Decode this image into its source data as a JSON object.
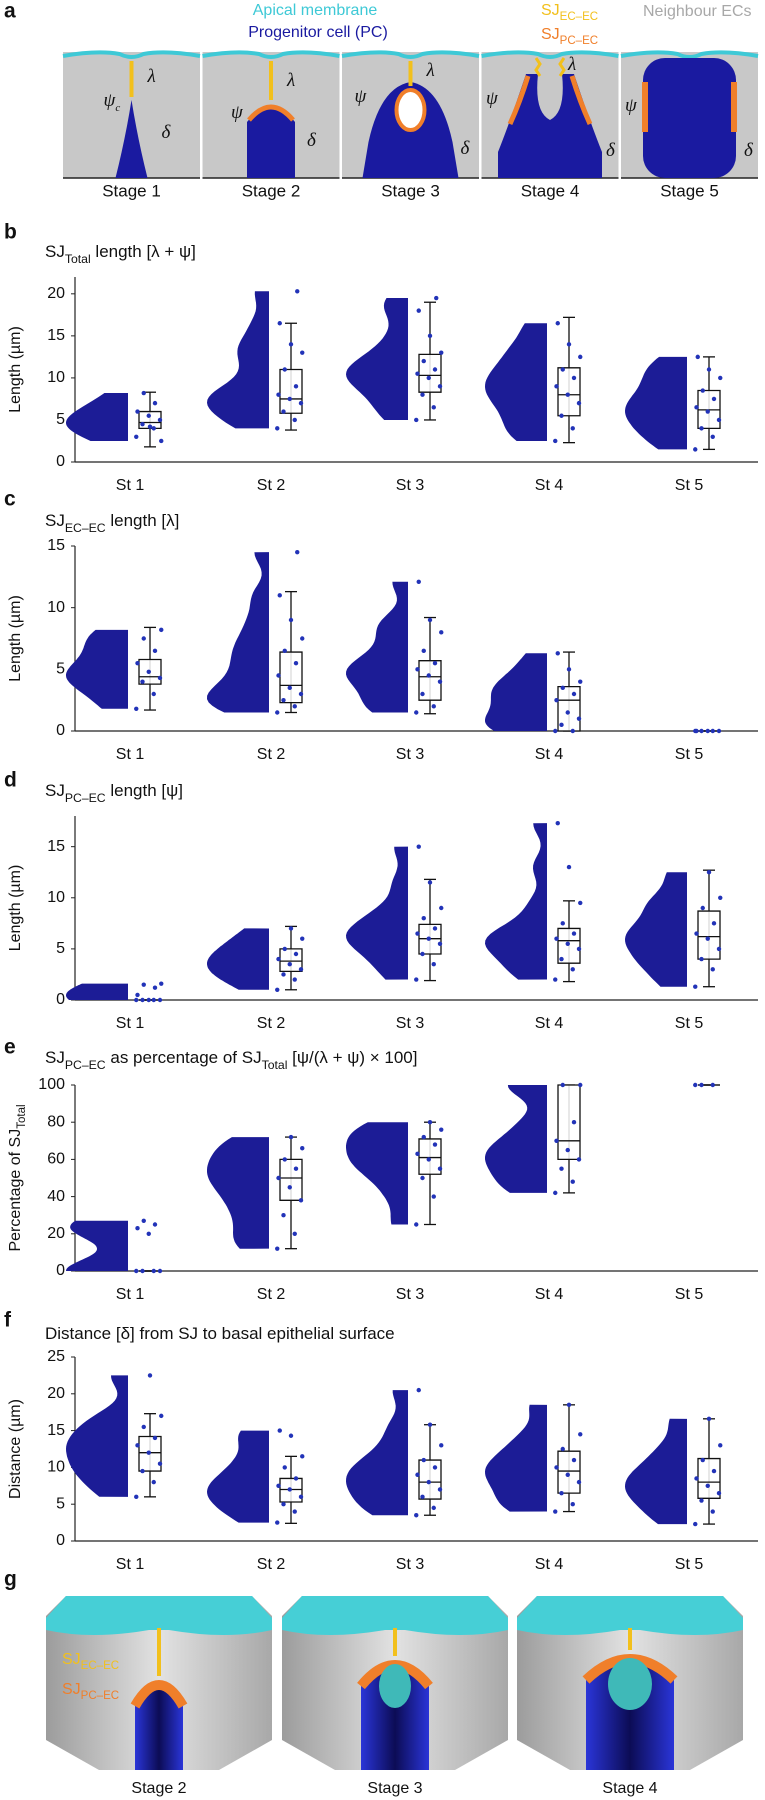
{
  "panel_labels": [
    "a",
    "b",
    "c",
    "d",
    "e",
    "f",
    "g"
  ],
  "panel_a": {
    "legend": [
      {
        "parts": [
          {
            "text": "Apical membrane"
          }
        ],
        "color": "#3ec9d6"
      },
      {
        "parts": [
          {
            "text": "Progenitor cell (PC)"
          }
        ],
        "color": "#1a1aa0"
      },
      {
        "parts": [
          {
            "text": "SJ"
          },
          {
            "text": "EC–EC",
            "sub": true
          }
        ],
        "color": "#f2c01c"
      },
      {
        "parts": [
          {
            "text": "SJ"
          },
          {
            "text": "PC–EC",
            "sub": true
          }
        ],
        "color": "#f07f2a"
      },
      {
        "parts": [
          {
            "text": "Neighbour ECs"
          }
        ],
        "color": "#a8a8a8"
      }
    ],
    "stages": [
      "Stage 1",
      "Stage 2",
      "Stage 3",
      "Stage 4",
      "Stage 5"
    ],
    "symbols": {
      "psi": "ψ",
      "psi_sub": "c",
      "lambda": "λ",
      "delta": "δ"
    }
  },
  "chart_data": [
    {
      "type": "violin-box",
      "title_parts": [
        {
          "text": "SJ"
        },
        {
          "text": "Total",
          "sub": true
        },
        {
          "text": " length [λ + ψ]"
        }
      ],
      "ylabel_parts": [
        {
          "text": "Length (µm)"
        }
      ],
      "categories": [
        "St 1",
        "St 2",
        "St 3",
        "St 4",
        "St 5"
      ],
      "color": "#1c1c96",
      "ylim": [
        0,
        22
      ],
      "yticks": [
        0,
        5,
        10,
        15,
        20
      ],
      "groups": [
        {
          "points": [
            3,
            4,
            4.5,
            5,
            5.5,
            6,
            7,
            8.2,
            2.5,
            4.2
          ],
          "box": {
            "low": 1.8,
            "q1": 4,
            "median": 4.7,
            "q3": 6,
            "high": 8.3
          }
        },
        {
          "points": [
            4,
            5,
            6,
            7,
            7.5,
            8,
            9,
            11,
            13,
            14,
            16.5,
            20.3
          ],
          "box": {
            "low": 3.8,
            "q1": 5.8,
            "median": 7.5,
            "q3": 11,
            "high": 16.5
          }
        },
        {
          "points": [
            5,
            6.5,
            8,
            9,
            10,
            10.5,
            11,
            12,
            13,
            15,
            18,
            19.5
          ],
          "box": {
            "low": 5,
            "q1": 8.3,
            "median": 10.3,
            "q3": 12.8,
            "high": 19
          }
        },
        {
          "points": [
            2.5,
            4,
            5.5,
            7,
            8,
            9,
            10,
            11,
            12.5,
            14,
            16.5
          ],
          "box": {
            "low": 2.3,
            "q1": 5.5,
            "median": 8,
            "q3": 11.2,
            "high": 17.2
          }
        },
        {
          "points": [
            1.5,
            3,
            4,
            5,
            6,
            6.5,
            7.5,
            8.5,
            10,
            11,
            12.5
          ],
          "box": {
            "low": 1.5,
            "q1": 4,
            "median": 6.2,
            "q3": 8.5,
            "high": 12.5
          }
        }
      ]
    },
    {
      "type": "violin-box",
      "title_parts": [
        {
          "text": "SJ"
        },
        {
          "text": "EC–EC",
          "sub": true
        },
        {
          "text": " length [λ]"
        }
      ],
      "ylabel_parts": [
        {
          "text": "Length (µm)"
        }
      ],
      "categories": [
        "St 1",
        "St 2",
        "St 3",
        "St 4",
        "St 5"
      ],
      "color": "#1c1c96",
      "ylim": [
        0,
        15
      ],
      "yticks": [
        0,
        5,
        10,
        15
      ],
      "groups": [
        {
          "points": [
            1.8,
            3,
            4,
            4.3,
            4.8,
            5.5,
            6.5,
            7.5,
            8.2
          ],
          "box": {
            "low": 1.7,
            "q1": 3.8,
            "median": 4.4,
            "q3": 5.8,
            "high": 8.4
          }
        },
        {
          "points": [
            1.5,
            2,
            2.5,
            3,
            3.5,
            4.5,
            5.5,
            6.5,
            7.5,
            9,
            11,
            14.5
          ],
          "box": {
            "low": 1.5,
            "q1": 2.3,
            "median": 3.7,
            "q3": 6.4,
            "high": 11.3
          }
        },
        {
          "points": [
            1.5,
            2,
            3,
            4,
            4.5,
            5,
            5.5,
            6.5,
            8,
            9,
            12.1
          ],
          "box": {
            "low": 1.4,
            "q1": 2.5,
            "median": 4.4,
            "q3": 5.7,
            "high": 9.2
          }
        },
        {
          "points": [
            0,
            0,
            0.5,
            1,
            1.5,
            2.5,
            3,
            3.5,
            4,
            5,
            6.3
          ],
          "box": {
            "low": 0,
            "q1": 0,
            "median": 2.5,
            "q3": 3.6,
            "high": 6.4
          }
        },
        {
          "points": [
            0,
            0,
            0,
            0,
            0,
            0
          ],
          "box": {
            "low": 0,
            "q1": 0,
            "median": 0,
            "q3": 0,
            "high": 0
          }
        }
      ]
    },
    {
      "type": "violin-box",
      "title_parts": [
        {
          "text": "SJ"
        },
        {
          "text": "PC–EC",
          "sub": true
        },
        {
          "text": " length [ψ]"
        }
      ],
      "ylabel_parts": [
        {
          "text": "Length (µm)"
        }
      ],
      "categories": [
        "St 1",
        "St 2",
        "St 3",
        "St 4",
        "St 5"
      ],
      "color": "#1c1c96",
      "ylim": [
        0,
        18
      ],
      "yticks": [
        0,
        5,
        10,
        15
      ],
      "groups": [
        {
          "points": [
            0,
            0,
            0,
            0,
            0,
            0.5,
            1.2,
            1.5,
            1.6
          ],
          "box": {
            "low": 0,
            "q1": 0,
            "median": 0,
            "q3": 0,
            "high": 0
          }
        },
        {
          "points": [
            1,
            2,
            2.5,
            3,
            3.5,
            4,
            4.5,
            5,
            6,
            7
          ],
          "box": {
            "low": 1,
            "q1": 2.8,
            "median": 3.8,
            "q3": 5,
            "high": 7.2
          }
        },
        {
          "points": [
            2,
            3.5,
            4.5,
            5.5,
            6,
            6.5,
            7,
            8,
            9,
            11.5,
            15
          ],
          "box": {
            "low": 1.9,
            "q1": 4.5,
            "median": 6,
            "q3": 7.4,
            "high": 11.8
          }
        },
        {
          "points": [
            2,
            3,
            4,
            5,
            5.5,
            6,
            6.5,
            7.5,
            9.5,
            13,
            17.3
          ],
          "box": {
            "low": 1.8,
            "q1": 3.6,
            "median": 5.8,
            "q3": 7,
            "high": 9.7
          }
        },
        {
          "points": [
            1.3,
            3,
            4,
            5,
            6,
            6.5,
            7.5,
            9,
            10,
            12.5
          ],
          "box": {
            "low": 1.3,
            "q1": 4,
            "median": 6.2,
            "q3": 8.7,
            "high": 12.7
          }
        }
      ]
    },
    {
      "type": "violin-box",
      "title_parts": [
        {
          "text": "SJ"
        },
        {
          "text": "PC–EC",
          "sub": true
        },
        {
          "text": " as percentage of SJ"
        },
        {
          "text": "Total",
          "sub": true
        },
        {
          "text": " [ψ/(λ + ψ) × 100]"
        }
      ],
      "ylabel_parts": [
        {
          "text": "Percentage of SJ"
        },
        {
          "text": "Total",
          "sub": true
        }
      ],
      "categories": [
        "St 1",
        "St 2",
        "St 3",
        "St 4",
        "St 5"
      ],
      "color": "#1c1c96",
      "ylim": [
        0,
        100
      ],
      "yticks": [
        0,
        20,
        40,
        60,
        80,
        100
      ],
      "groups": [
        {
          "points": [
            0,
            0,
            0,
            0,
            20,
            23,
            25,
            27
          ],
          "box": {
            "low": 0,
            "q1": 0,
            "median": 0,
            "q3": 0,
            "high": 0
          }
        },
        {
          "points": [
            12,
            20,
            30,
            38,
            45,
            50,
            55,
            60,
            66,
            72
          ],
          "box": {
            "low": 12,
            "q1": 38,
            "median": 50,
            "q3": 60,
            "high": 72
          }
        },
        {
          "points": [
            25,
            40,
            50,
            55,
            60,
            63,
            68,
            72,
            76,
            80
          ],
          "box": {
            "low": 25,
            "q1": 52,
            "median": 61,
            "q3": 71,
            "high": 80
          }
        },
        {
          "points": [
            42,
            48,
            55,
            60,
            65,
            70,
            80,
            100,
            100
          ],
          "box": {
            "low": 42,
            "q1": 60,
            "median": 70,
            "q3": 100,
            "high": 100
          }
        },
        {
          "points": [
            100,
            100,
            100
          ],
          "box": {
            "low": 100,
            "q1": 100,
            "median": 100,
            "q3": 100,
            "high": 100
          }
        }
      ]
    },
    {
      "type": "violin-box",
      "title_parts": [
        {
          "text": "Distance [δ] from SJ to basal epithelial surface"
        }
      ],
      "ylabel_parts": [
        {
          "text": "Distance (µm)"
        }
      ],
      "categories": [
        "St 1",
        "St 2",
        "St 3",
        "St 4",
        "St 5"
      ],
      "color": "#1c1c96",
      "ylim": [
        0,
        25
      ],
      "yticks": [
        0,
        5,
        10,
        15,
        20,
        25
      ],
      "groups": [
        {
          "points": [
            6,
            8,
            9.5,
            10.5,
            12,
            13,
            14,
            15.5,
            17,
            22.5
          ],
          "box": {
            "low": 6,
            "q1": 9.5,
            "median": 12,
            "q3": 14.2,
            "high": 17.3
          }
        },
        {
          "points": [
            2.5,
            4,
            5,
            6,
            7,
            7.5,
            8.5,
            10,
            11.5,
            14.3,
            15
          ],
          "box": {
            "low": 2.4,
            "q1": 5.3,
            "median": 7,
            "q3": 8.5,
            "high": 11.5
          }
        },
        {
          "points": [
            3.5,
            4.5,
            6,
            7,
            8,
            9,
            10,
            11,
            13,
            15.8,
            20.5
          ],
          "box": {
            "low": 3.5,
            "q1": 5.7,
            "median": 8,
            "q3": 11,
            "high": 15.8
          }
        },
        {
          "points": [
            4,
            5,
            6.5,
            8,
            9,
            10,
            11,
            12.5,
            14.5,
            18.5
          ],
          "box": {
            "low": 4,
            "q1": 6.5,
            "median": 9.5,
            "q3": 12.2,
            "high": 18.5
          }
        },
        {
          "points": [
            2.3,
            4,
            5.5,
            6.5,
            7.5,
            8.5,
            9.5,
            11,
            13,
            16.6
          ],
          "box": {
            "low": 2.3,
            "q1": 5.8,
            "median": 8,
            "q3": 11.2,
            "high": 16.6
          }
        }
      ]
    }
  ],
  "panel_g": {
    "labels": [
      {
        "parts": [
          {
            "text": "SJ"
          },
          {
            "text": "EC–EC",
            "sub": true
          }
        ],
        "color": "#f2c01c"
      },
      {
        "parts": [
          {
            "text": "SJ"
          },
          {
            "text": "PC–EC",
            "sub": true
          }
        ],
        "color": "#f07f2a"
      }
    ],
    "stages": [
      "Stage 2",
      "Stage 3",
      "Stage 4"
    ]
  }
}
